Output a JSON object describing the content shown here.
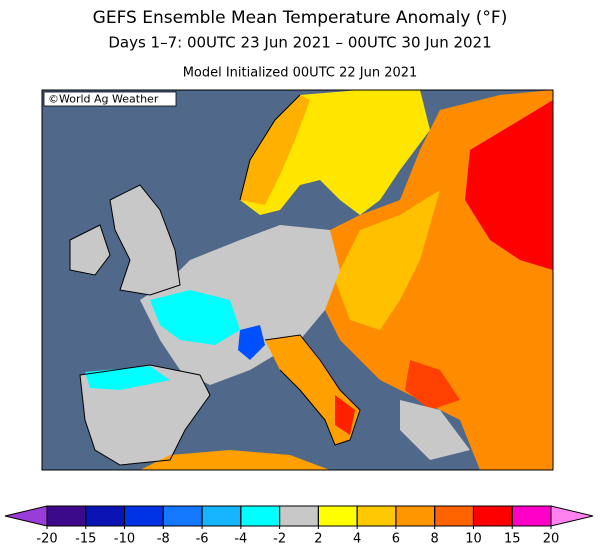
{
  "map": {
    "title": "GEFS Ensemble Mean Temperature Anomaly (°F)",
    "subtitle": "Days 1–7: 00UTC 23 Jun 2021 – 00UTC 30 Jun 2021",
    "initialized": "Model Initialized 00UTC 22 Jun 2021",
    "credit": "©World Ag Weather"
  },
  "colorbar": {
    "ticks": [
      -20,
      -15,
      -10,
      -8,
      -6,
      -4,
      -2,
      2,
      4,
      6,
      8,
      10,
      15,
      20
    ],
    "under_color": "#9a3cd8",
    "colors": [
      "#3a0a8a",
      "#0a14b4",
      "#0032e6",
      "#1478ff",
      "#14b4ff",
      "#00ffff",
      "#c8c8c8",
      "#ffff00",
      "#ffc800",
      "#ff9600",
      "#ff6400",
      "#ff0000",
      "#ff00c8"
    ],
    "over_color": "#ff82f0"
  }
}
